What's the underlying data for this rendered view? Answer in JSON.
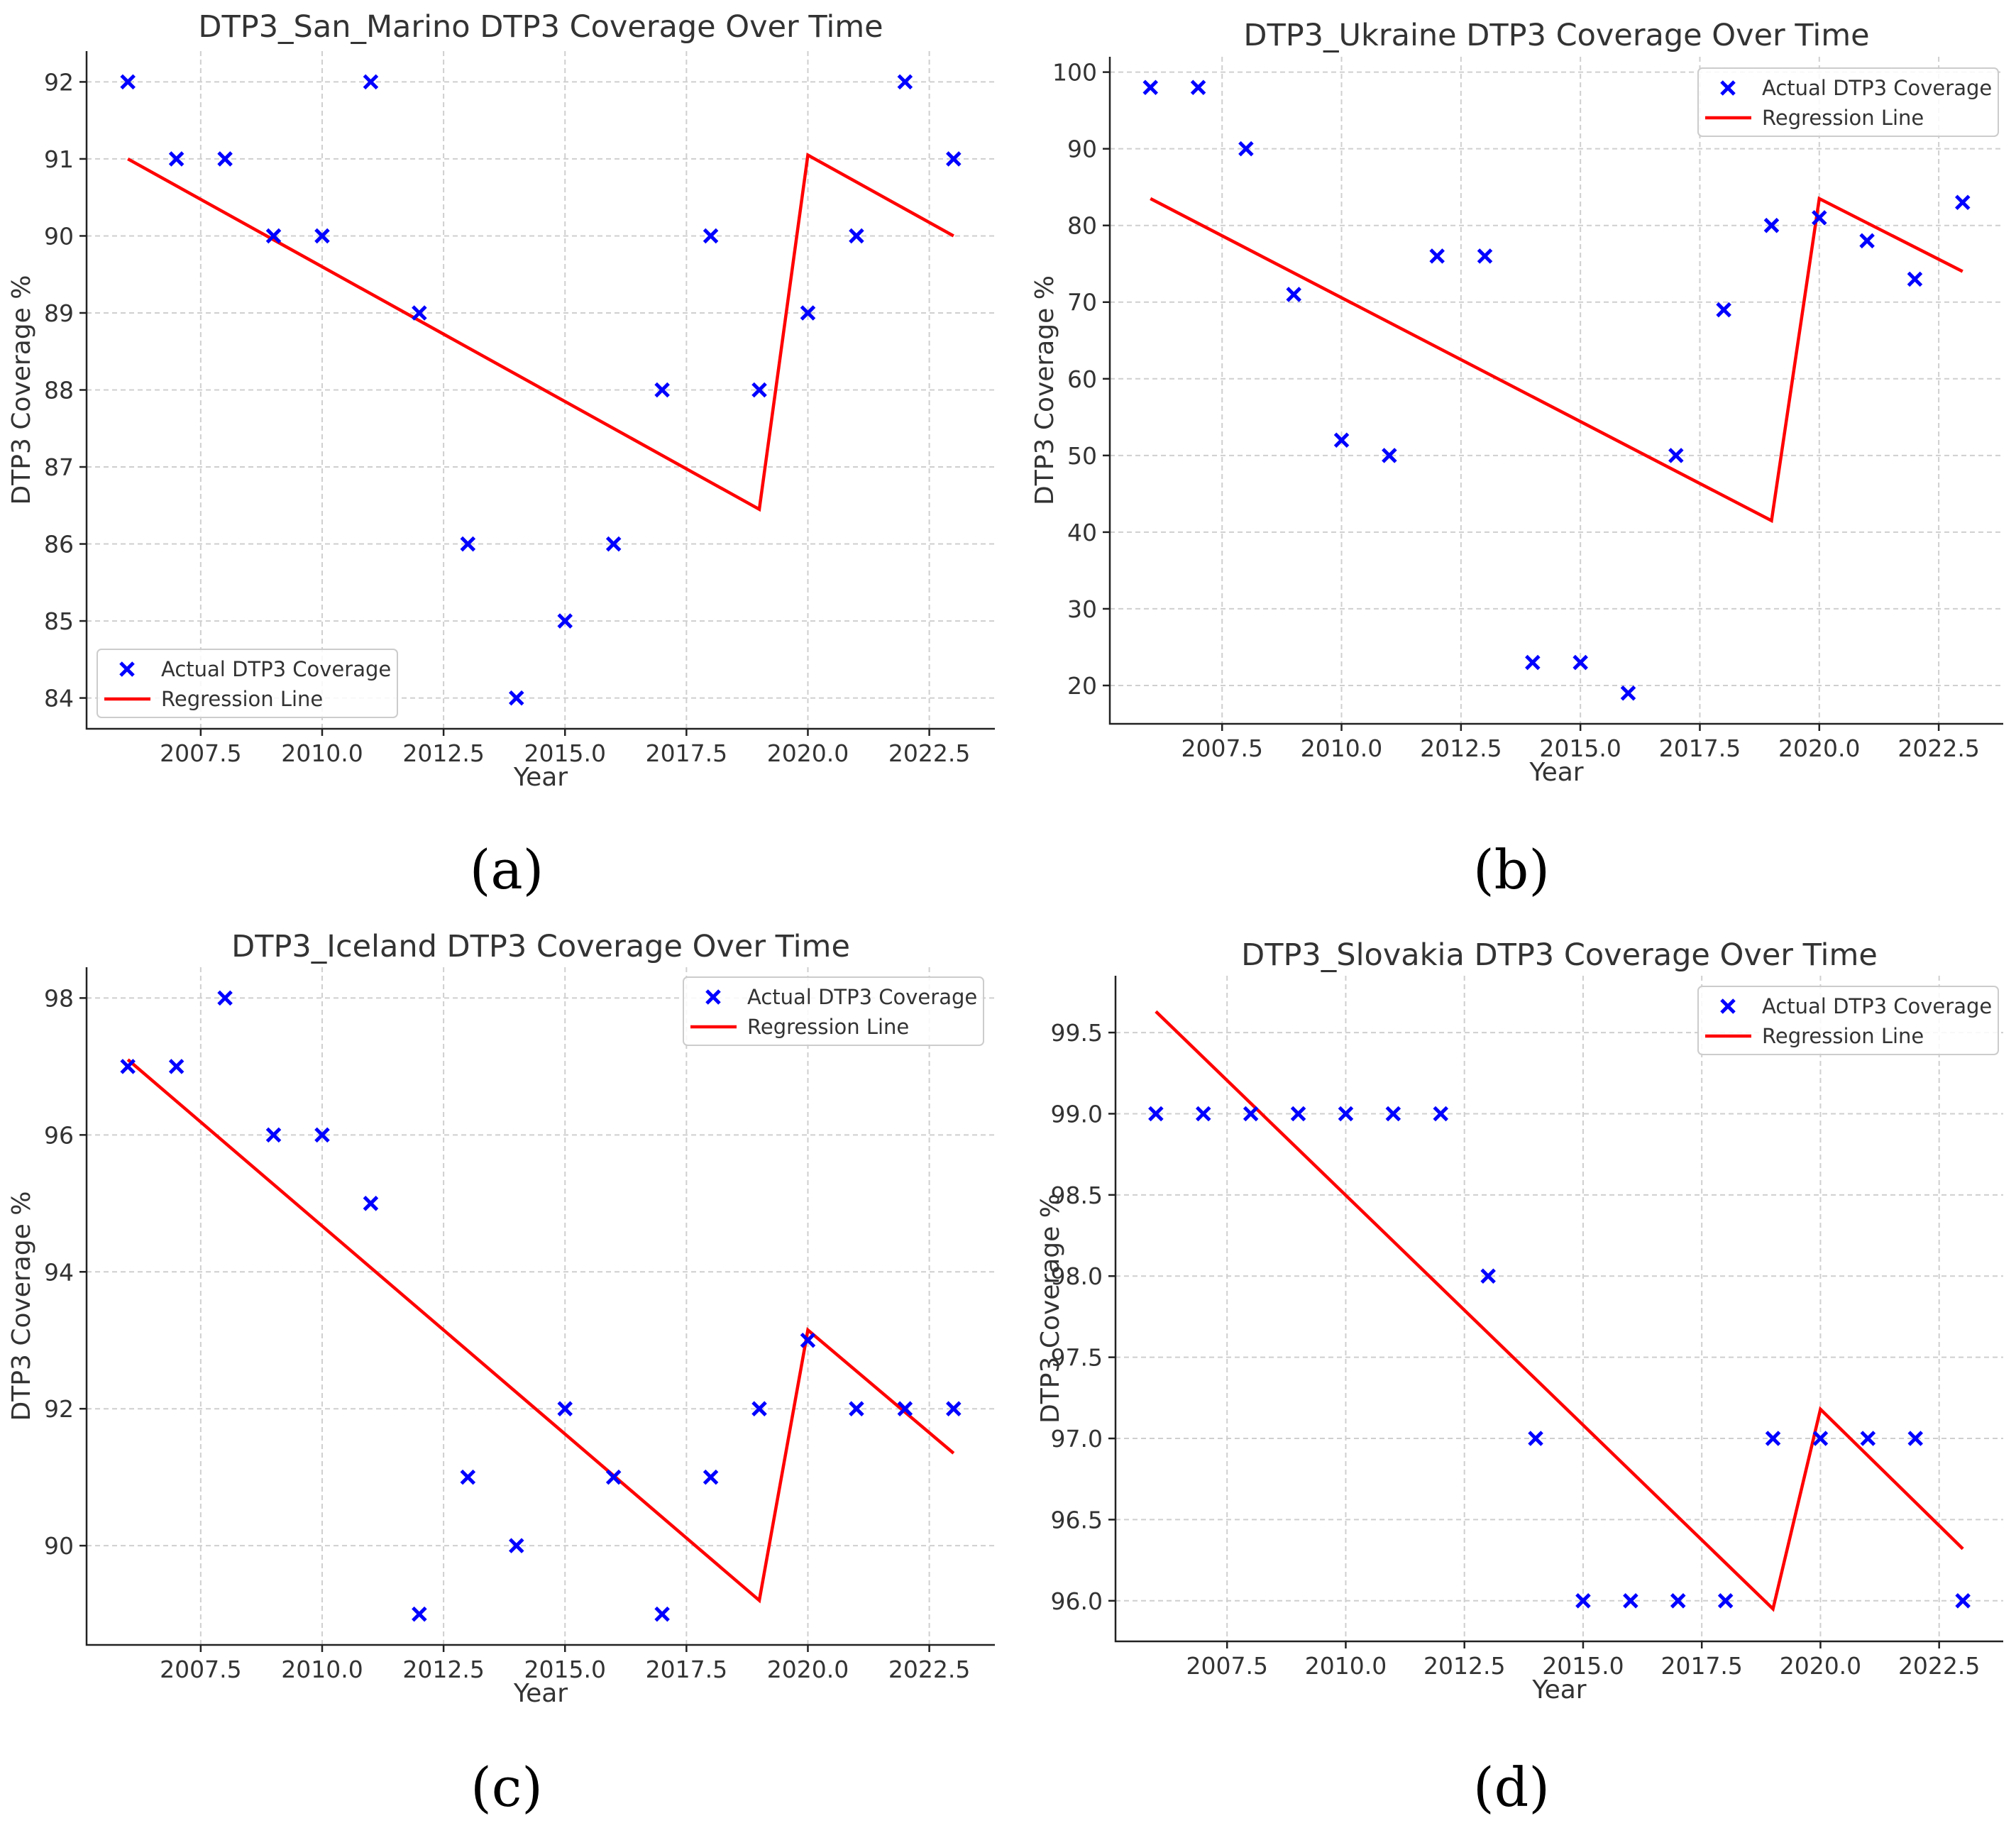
{
  "figure": {
    "panel_letters": [
      "(a)",
      "(b)",
      "(c)",
      "(d)"
    ]
  },
  "chart_data": [
    {
      "type": "scatter",
      "title": "DTP3_San_Marino DTP3 Coverage Over Time",
      "xlabel": "Year",
      "ylabel": "DTP3 Coverage %",
      "xlim": [
        2005.15,
        2023.85
      ],
      "ylim": [
        83.6,
        92.4
      ],
      "xticks": [
        2007.5,
        2010.0,
        2012.5,
        2015.0,
        2017.5,
        2020.0,
        2022.5
      ],
      "xtick_labels": [
        "2007.5",
        "2010.0",
        "2012.5",
        "2015.0",
        "2017.5",
        "2020.0",
        "2022.5"
      ],
      "yticks": [
        84,
        85,
        86,
        87,
        88,
        89,
        90,
        91,
        92
      ],
      "ytick_labels": [
        "84",
        "85",
        "86",
        "87",
        "88",
        "89",
        "90",
        "91",
        "92"
      ],
      "grid": true,
      "legend_position": "bottom-left",
      "series": [
        {
          "name": "Actual DTP3 Coverage",
          "kind": "marker",
          "color": "#0000ff",
          "x": [
            2006,
            2007,
            2008,
            2009,
            2010,
            2011,
            2012,
            2013,
            2014,
            2015,
            2016,
            2017,
            2018,
            2019,
            2020,
            2021,
            2022,
            2023
          ],
          "y": [
            92,
            91,
            91,
            90,
            90,
            92,
            89,
            86,
            84,
            85,
            86,
            88,
            90,
            88,
            89,
            90,
            92,
            91
          ]
        },
        {
          "name": "Regression Line",
          "kind": "line",
          "color": "#ff0000",
          "x": [
            2006,
            2019,
            2020,
            2023
          ],
          "y": [
            91.0,
            86.45,
            91.05,
            90.0
          ]
        }
      ]
    },
    {
      "type": "scatter",
      "title": "DTP3_Ukraine DTP3 Coverage Over Time",
      "xlabel": "Year",
      "ylabel": "DTP3 Coverage %",
      "xlim": [
        2005.15,
        2023.85
      ],
      "ylim": [
        15,
        102
      ],
      "xticks": [
        2007.5,
        2010.0,
        2012.5,
        2015.0,
        2017.5,
        2020.0,
        2022.5
      ],
      "xtick_labels": [
        "2007.5",
        "2010.0",
        "2012.5",
        "2015.0",
        "2017.5",
        "2020.0",
        "2022.5"
      ],
      "yticks": [
        20,
        30,
        40,
        50,
        60,
        70,
        80,
        90,
        100
      ],
      "ytick_labels": [
        "20",
        "30",
        "40",
        "50",
        "60",
        "70",
        "80",
        "90",
        "100"
      ],
      "grid": true,
      "legend_position": "top-right",
      "series": [
        {
          "name": "Actual DTP3 Coverage",
          "kind": "marker",
          "color": "#0000ff",
          "x": [
            2006,
            2007,
            2008,
            2009,
            2010,
            2011,
            2012,
            2013,
            2014,
            2015,
            2016,
            2017,
            2018,
            2019,
            2020,
            2021,
            2022,
            2023
          ],
          "y": [
            98,
            98,
            90,
            71,
            52,
            50,
            76,
            76,
            23,
            23,
            19,
            50,
            69,
            80,
            81,
            78,
            73,
            83
          ]
        },
        {
          "name": "Regression Line",
          "kind": "line",
          "color": "#ff0000",
          "x": [
            2006,
            2019,
            2020,
            2023
          ],
          "y": [
            83.5,
            41.5,
            83.5,
            74.0
          ]
        }
      ]
    },
    {
      "type": "scatter",
      "title": "DTP3_Iceland DTP3 Coverage Over Time",
      "xlabel": "Year",
      "ylabel": "DTP3 Coverage %",
      "xlim": [
        2005.15,
        2023.85
      ],
      "ylim": [
        88.55,
        98.45
      ],
      "xticks": [
        2007.5,
        2010.0,
        2012.5,
        2015.0,
        2017.5,
        2020.0,
        2022.5
      ],
      "xtick_labels": [
        "2007.5",
        "2010.0",
        "2012.5",
        "2015.0",
        "2017.5",
        "2020.0",
        "2022.5"
      ],
      "yticks": [
        90,
        92,
        94,
        96,
        98
      ],
      "ytick_labels": [
        "90",
        "92",
        "94",
        "96",
        "98"
      ],
      "grid": true,
      "legend_position": "top-right",
      "series": [
        {
          "name": "Actual DTP3 Coverage",
          "kind": "marker",
          "color": "#0000ff",
          "x": [
            2006,
            2007,
            2008,
            2009,
            2010,
            2011,
            2012,
            2013,
            2014,
            2015,
            2016,
            2017,
            2018,
            2019,
            2020,
            2021,
            2022,
            2023
          ],
          "y": [
            97,
            97,
            98,
            96,
            96,
            95,
            89,
            91,
            90,
            92,
            91,
            89,
            91,
            92,
            93,
            92,
            92,
            92
          ]
        },
        {
          "name": "Regression Line",
          "kind": "line",
          "color": "#ff0000",
          "x": [
            2006,
            2019,
            2020,
            2023
          ],
          "y": [
            97.1,
            89.2,
            93.15,
            91.35
          ]
        }
      ]
    },
    {
      "type": "scatter",
      "title": "DTP3_Slovakia DTP3 Coverage Over Time",
      "xlabel": "Year",
      "ylabel": "DTP3 Coverage %",
      "xlim": [
        2005.15,
        2023.85
      ],
      "ylim": [
        95.75,
        99.85
      ],
      "xticks": [
        2007.5,
        2010.0,
        2012.5,
        2015.0,
        2017.5,
        2020.0,
        2022.5
      ],
      "xtick_labels": [
        "2007.5",
        "2010.0",
        "2012.5",
        "2015.0",
        "2017.5",
        "2020.0",
        "2022.5"
      ],
      "yticks": [
        96.0,
        96.5,
        97.0,
        97.5,
        98.0,
        98.5,
        99.0,
        99.5
      ],
      "ytick_labels": [
        "96.0",
        "96.5",
        "97.0",
        "97.5",
        "98.0",
        "98.5",
        "99.0",
        "99.5"
      ],
      "grid": true,
      "legend_position": "top-right",
      "series": [
        {
          "name": "Actual DTP3 Coverage",
          "kind": "marker",
          "color": "#0000ff",
          "x": [
            2006,
            2007,
            2008,
            2009,
            2010,
            2011,
            2012,
            2013,
            2014,
            2015,
            2016,
            2017,
            2018,
            2019,
            2020,
            2021,
            2022,
            2023
          ],
          "y": [
            99,
            99,
            99,
            99,
            99,
            99,
            99,
            98,
            97,
            96,
            96,
            96,
            96,
            97,
            97,
            97,
            97,
            96
          ]
        },
        {
          "name": "Regression Line",
          "kind": "line",
          "color": "#ff0000",
          "x": [
            2006,
            2019,
            2020,
            2023
          ],
          "y": [
            99.63,
            95.95,
            97.18,
            96.32
          ]
        }
      ]
    }
  ]
}
